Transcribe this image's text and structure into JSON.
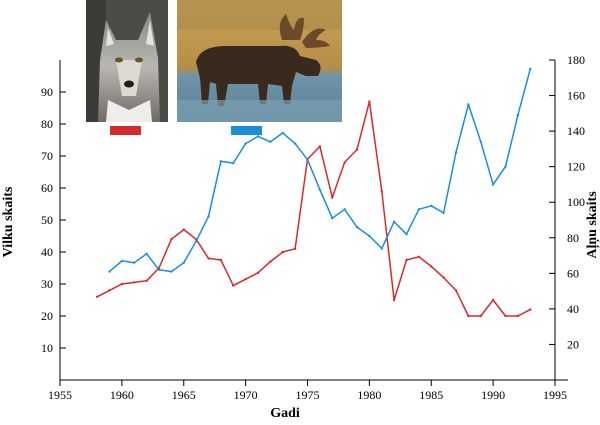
{
  "chart_data": {
    "type": "line",
    "xlabel": "Gadi",
    "ylabel_left": "Vilku skaits",
    "ylabel_right": "Aļņu skaits",
    "xlim": [
      1955,
      1995
    ],
    "xticks": [
      1955,
      1960,
      1965,
      1970,
      1975,
      1980,
      1985,
      1990,
      1995
    ],
    "ylim_left": [
      0,
      100
    ],
    "yticks_left": [
      10,
      20,
      30,
      40,
      50,
      60,
      70,
      80,
      90
    ],
    "ylim_right": [
      0,
      180
    ],
    "yticks_right": [
      20,
      40,
      60,
      80,
      100,
      120,
      140,
      160,
      180
    ],
    "grid": false,
    "legend": {
      "type": "picture-swatches",
      "items": [
        {
          "picture": "wolf-photo",
          "color": "#d62b2b",
          "axis": "left"
        },
        {
          "picture": "moose-photo",
          "color": "#1a8fd6",
          "axis": "right"
        }
      ]
    },
    "series": [
      {
        "axis": "left",
        "color": "#d62b2b",
        "x": [
          1958,
          1959,
          1960,
          1961,
          1962,
          1963,
          1964,
          1965,
          1966,
          1967,
          1968,
          1969,
          1970,
          1971,
          1972,
          1973,
          1974,
          1975,
          1976,
          1977,
          1978,
          1979,
          1980,
          1981,
          1982,
          1983,
          1984,
          1985,
          1986,
          1987,
          1988,
          1989,
          1990,
          1991,
          1992,
          1993
        ],
        "values": [
          26,
          28,
          30,
          30.5,
          31,
          35,
          44,
          47,
          44,
          38,
          37.5,
          29.5,
          31.5,
          33.5,
          37,
          40,
          41,
          69,
          73,
          57,
          68,
          72,
          87,
          59,
          25,
          37.5,
          38.5,
          35.5,
          32,
          28,
          20,
          20,
          25,
          20,
          20,
          22
        ]
      },
      {
        "axis": "right",
        "color": "#1a8fd6",
        "x": [
          1959,
          1960,
          1961,
          1962,
          1963,
          1964,
          1965,
          1966,
          1967,
          1968,
          1969,
          1970,
          1971,
          1972,
          1973,
          1974,
          1975,
          1976,
          1977,
          1978,
          1979,
          1980,
          1981,
          1982,
          1983,
          1984,
          1985,
          1986,
          1987,
          1988,
          1989,
          1990,
          1991,
          1992,
          1993
        ],
        "values": [
          61,
          67,
          66,
          71,
          62,
          61,
          66,
          78,
          92,
          123,
          122,
          133,
          137,
          134,
          139,
          133,
          124,
          107,
          91,
          96,
          86,
          81,
          74,
          89,
          82,
          96,
          98,
          94,
          128,
          155,
          134,
          110,
          120,
          149,
          175
        ]
      }
    ]
  }
}
